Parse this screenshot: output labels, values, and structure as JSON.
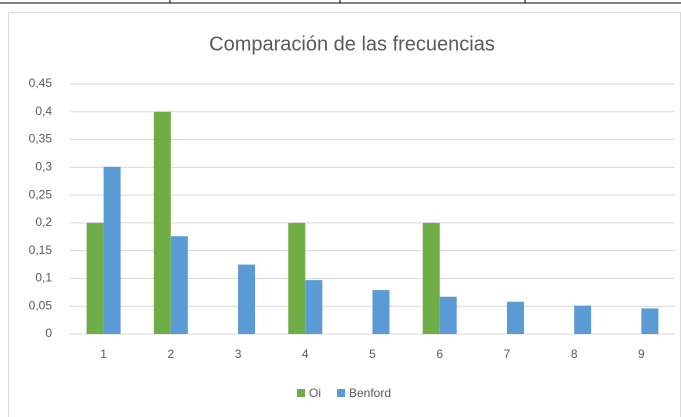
{
  "chart_data": {
    "type": "bar",
    "title": "Comparación de las frecuencias",
    "categories": [
      "1",
      "2",
      "3",
      "4",
      "5",
      "6",
      "7",
      "8",
      "9"
    ],
    "series": [
      {
        "name": "Oi",
        "color": "#70ad47",
        "values": [
          0.2,
          0.4,
          0,
          0.2,
          0,
          0.2,
          0,
          0,
          0
        ]
      },
      {
        "name": "Benford",
        "color": "#5b9bd5",
        "values": [
          0.301,
          0.176,
          0.125,
          0.097,
          0.079,
          0.067,
          0.058,
          0.051,
          0.046
        ]
      }
    ],
    "ylim": [
      0,
      0.45
    ],
    "yticks": [
      0,
      {
        "value": 0.05,
        "label": "0,05"
      },
      {
        "value": 0.1,
        "label": "0,1"
      },
      {
        "value": 0.15,
        "label": "0,15"
      },
      {
        "value": 0.2,
        "label": "0,2"
      },
      {
        "value": 0.25,
        "label": "0,25"
      },
      {
        "value": 0.3,
        "label": "0,3"
      },
      {
        "value": 0.35,
        "label": "0,35"
      },
      {
        "value": 0.4,
        "label": "0,4"
      },
      {
        "value": 0.45,
        "label": "0,45"
      }
    ],
    "grid": true,
    "legend": "bottom"
  }
}
